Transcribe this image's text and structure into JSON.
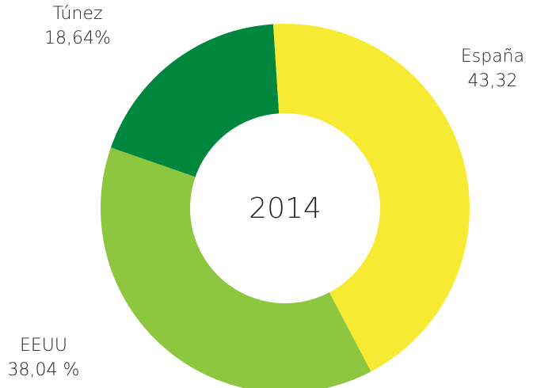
{
  "chart_data": {
    "type": "donut",
    "center_label": "2014",
    "categories": [
      "España",
      "EEUU",
      "Túnez"
    ],
    "values": [
      43.32,
      38.04,
      18.64
    ],
    "value_labels": [
      "43,32",
      "38,04 %",
      "18,64%"
    ],
    "colors": [
      "#f6ea33",
      "#8dc63f",
      "#00873e"
    ]
  }
}
